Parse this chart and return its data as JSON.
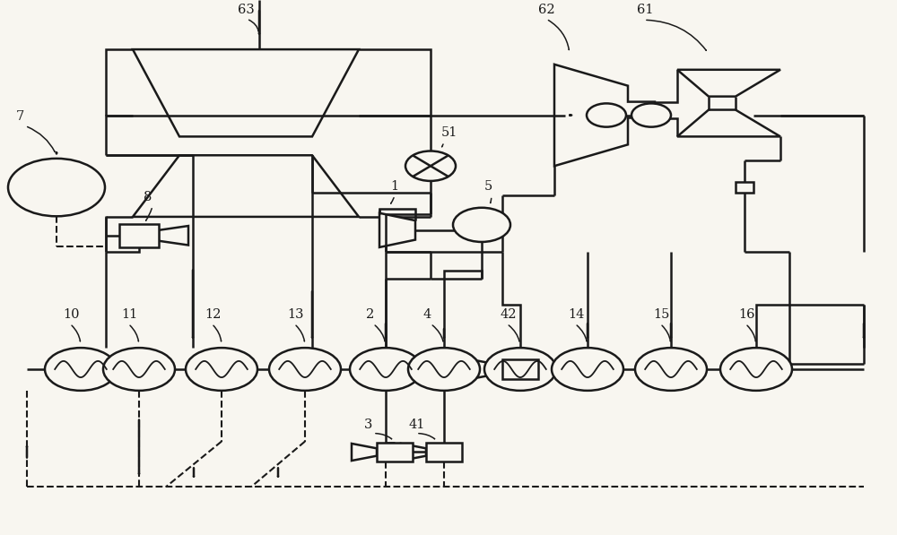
{
  "bg": "#f8f6f0",
  "lc": "#1a1a1a",
  "lw": 1.8,
  "figw": 10.0,
  "figh": 5.97,
  "dpi": 100
}
